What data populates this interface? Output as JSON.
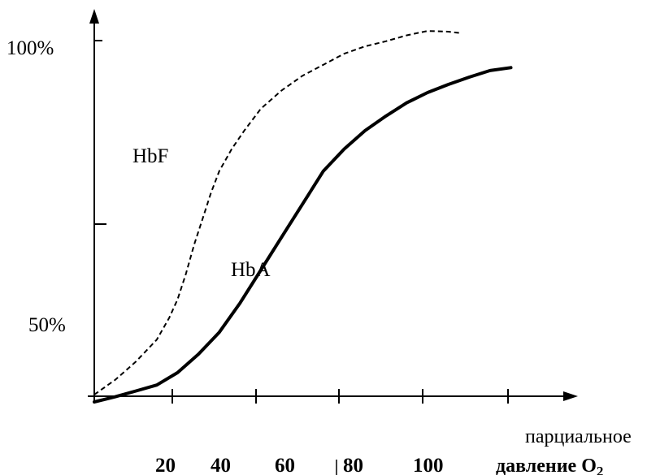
{
  "chart_data": {
    "type": "line",
    "y_tick_labels": [
      "100%",
      "50%"
    ],
    "x_tick_labels": [
      "20",
      "40",
      "60",
      "80",
      "100"
    ],
    "x_axis_caption": {
      "line1": "парциальное",
      "line2": "давление O",
      "subscript": "2"
    },
    "x": [
      0,
      5,
      10,
      15,
      20,
      25,
      30,
      35,
      40,
      45,
      50,
      55,
      60,
      65,
      70,
      75,
      80,
      85,
      90,
      95,
      100
    ],
    "series": [
      {
        "name": "HbF",
        "style": "dashed",
        "points": [
          [
            0,
            50
          ],
          [
            5,
            52
          ],
          [
            10,
            54.5
          ],
          [
            15,
            57.5
          ],
          [
            18,
            60.5
          ],
          [
            20,
            63
          ],
          [
            22,
            66.5
          ],
          [
            24,
            70.5
          ],
          [
            26,
            74
          ],
          [
            28,
            77.5
          ],
          [
            30,
            80.5
          ],
          [
            33,
            83.5
          ],
          [
            36,
            86
          ],
          [
            40,
            89
          ],
          [
            45,
            91.5
          ],
          [
            50,
            93.5
          ],
          [
            55,
            95
          ],
          [
            60,
            96.5
          ],
          [
            65,
            97.5
          ],
          [
            70,
            98.2
          ],
          [
            75,
            99
          ],
          [
            80,
            99.6
          ],
          [
            85,
            99.5
          ],
          [
            88,
            99.3
          ]
        ]
      },
      {
        "name": "HbA",
        "style": "solid",
        "points": [
          [
            0,
            49
          ],
          [
            5,
            49.7
          ],
          [
            10,
            50.5
          ],
          [
            15,
            51.3
          ],
          [
            20,
            53
          ],
          [
            25,
            55.5
          ],
          [
            30,
            58.5
          ],
          [
            35,
            62.5
          ],
          [
            40,
            67
          ],
          [
            45,
            71.5
          ],
          [
            50,
            76
          ],
          [
            55,
            80.5
          ],
          [
            60,
            83.5
          ],
          [
            65,
            86
          ],
          [
            70,
            88
          ],
          [
            75,
            89.8
          ],
          [
            80,
            91.2
          ],
          [
            85,
            92.3
          ],
          [
            90,
            93.3
          ],
          [
            95,
            94.2
          ],
          [
            100,
            94.6
          ]
        ]
      }
    ],
    "xlim": [
      0,
      112
    ],
    "ylim": [
      49,
      100.5
    ],
    "grid": false,
    "legend": "none"
  }
}
